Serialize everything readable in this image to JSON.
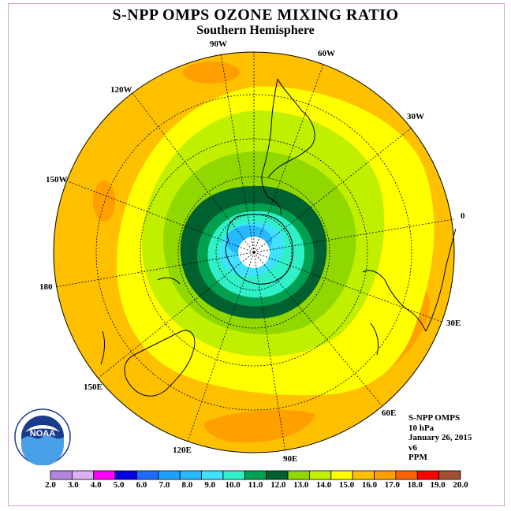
{
  "title": "S-NPP OMPS OZONE MIXING RATIO",
  "subtitle": "Southern Hemisphere",
  "longitude_labels": {
    "l90w": "90W",
    "l60w": "60W",
    "l30w": "30W",
    "l120w": "120W",
    "l150w": "150W",
    "l0": "0",
    "l180": "180",
    "l30e": "30E",
    "l150e": "150E",
    "l60e": "60E",
    "l120e": "120E",
    "l90e": "90E"
  },
  "info": {
    "instrument": "S-NPP OMPS",
    "level": "10 hPa",
    "date": "January 26, 2015",
    "version": "v6",
    "units": "PPM"
  },
  "logo_text": "NOAA",
  "colorbar": {
    "ticks": [
      "2.0",
      "3.0",
      "4.0",
      "5.0",
      "6.0",
      "7.0",
      "8.0",
      "9.0",
      "10.0",
      "11.0",
      "12.0",
      "13.0",
      "14.0",
      "15.0",
      "16.0",
      "17.0",
      "18.0",
      "19.0",
      "20.0"
    ],
    "colors": [
      "#b583e0",
      "#dcb0f0",
      "#ff00ff",
      "#0000e0",
      "#1e6cff",
      "#1ea0ff",
      "#28b8ff",
      "#40e0ff",
      "#30f0c8",
      "#00a050",
      "#006030",
      "#90d800",
      "#c0f000",
      "#ffff00",
      "#ffc000",
      "#ffa000",
      "#ff6000",
      "#ff0000",
      "#a05030"
    ]
  },
  "colors": {
    "background": "#ffffff",
    "frame": "#d7a0d7",
    "outer_orange": "#ffc000",
    "dark_orange": "#ffa000",
    "yellow": "#ffff00",
    "light_green": "#c0f000",
    "green": "#90d800",
    "dark_green": "#006030",
    "mid_green": "#00a050",
    "aqua": "#30f0c8",
    "cyan": "#40e0ff",
    "blue": "#28b8ff"
  }
}
